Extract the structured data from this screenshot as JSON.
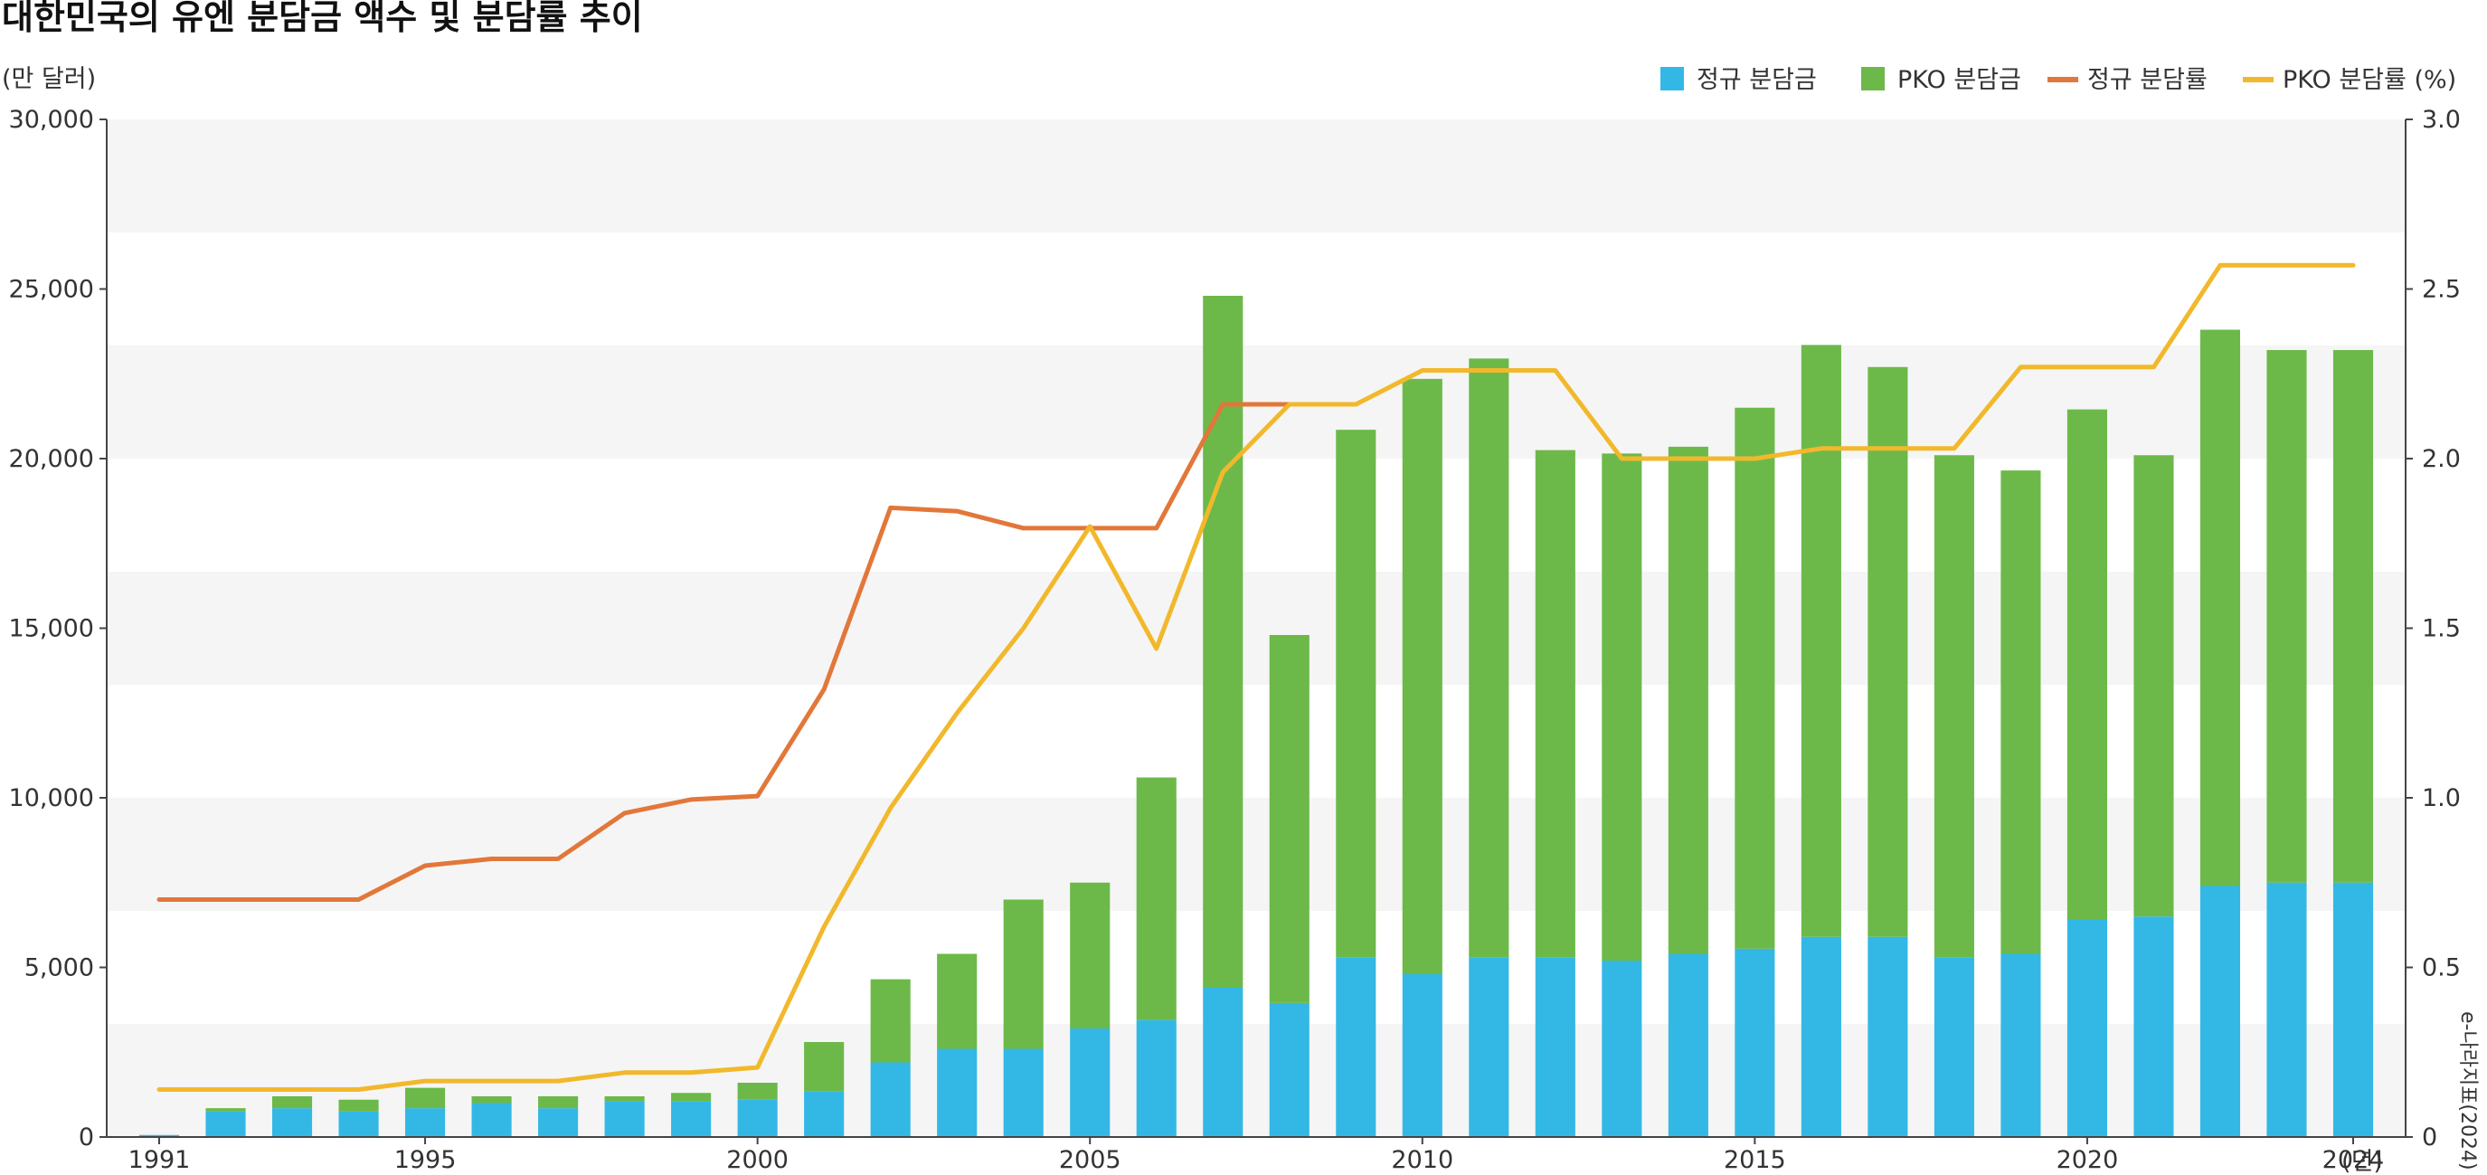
{
  "chart_data": {
    "type": "bar",
    "title": "대한민국의 유엔 분담금 액수 및 분담률 추이",
    "left_unit": "(만 달러)",
    "x_unit": "(년)",
    "source": "e-나라지표(2024)",
    "x": [
      1991,
      1992,
      1993,
      1994,
      1995,
      1996,
      1997,
      1998,
      1999,
      2000,
      2001,
      2002,
      2003,
      2004,
      2005,
      2006,
      2007,
      2008,
      2009,
      2010,
      2011,
      2012,
      2013,
      2014,
      2015,
      2016,
      2017,
      2018,
      2019,
      2020,
      2021,
      2022,
      2023,
      2024
    ],
    "x_tick_labels": [
      "1991",
      "1995",
      "2000",
      "2005",
      "2010",
      "2015",
      "2020",
      "2024"
    ],
    "left_axis": {
      "ylim": [
        0,
        30000
      ],
      "ticks": [
        "0",
        "5,000",
        "10,000",
        "15,000",
        "20,000",
        "25,000",
        "30,000"
      ]
    },
    "right_axis": {
      "ylim": [
        0,
        3.0
      ],
      "ticks": [
        "0",
        "0.5",
        "1.0",
        "1.5",
        "2.0",
        "2.5",
        "3.0"
      ]
    },
    "stacked": true,
    "grid_bands": true,
    "legend_position": "top-right",
    "series": [
      {
        "name": "정규 분담금",
        "kind": "bar",
        "axis": "left",
        "color": "#33b8e6",
        "values": [
          60,
          750,
          850,
          750,
          850,
          1000,
          850,
          1050,
          1050,
          1100,
          1350,
          2200,
          2600,
          2600,
          3200,
          3450,
          4400,
          3950,
          5300,
          4800,
          5300,
          5300,
          5200,
          5400,
          5550,
          5900,
          5900,
          5300,
          5400,
          6400,
          6500,
          7400,
          7500,
          7500
        ]
      },
      {
        "name": "PKO 분담금",
        "kind": "bar",
        "axis": "left",
        "color": "#6cb94a",
        "values": [
          0,
          100,
          350,
          350,
          600,
          200,
          350,
          150,
          250,
          500,
          1450,
          2450,
          2800,
          4400,
          4300,
          7150,
          20400,
          10850,
          15550,
          17550,
          17650,
          14950,
          14950,
          14950,
          15950,
          17450,
          16800,
          14800,
          14250,
          15050,
          13600,
          16400,
          15700,
          15700
        ]
      },
      {
        "name": "정규 분담률",
        "kind": "line",
        "axis": "right",
        "color": "#e2773a",
        "values": [
          0.7,
          0.7,
          0.7,
          0.7,
          0.8,
          0.82,
          0.82,
          0.955,
          0.995,
          1.005,
          1.32,
          1.855,
          1.845,
          1.795,
          1.795,
          1.795,
          2.16,
          2.16,
          null,
          null,
          null,
          null,
          null,
          null,
          null,
          null,
          null,
          null,
          null,
          null,
          null,
          null,
          null,
          null
        ]
      },
      {
        "name": "PKO 분담률",
        "kind": "line",
        "axis": "right",
        "color": "#f2b82c",
        "values": [
          0.14,
          0.14,
          0.14,
          0.14,
          0.165,
          0.165,
          0.165,
          0.19,
          0.19,
          0.205,
          0.62,
          0.97,
          1.25,
          1.5,
          1.8,
          1.44,
          1.96,
          2.16,
          2.16,
          2.26,
          2.26,
          2.26,
          2.0,
          2.0,
          2.0,
          2.03,
          2.03,
          2.03,
          2.27,
          2.27,
          2.27,
          2.57,
          2.57,
          2.57
        ]
      }
    ]
  }
}
